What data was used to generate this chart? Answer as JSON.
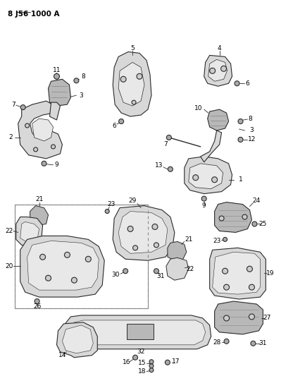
{
  "title": "8 J56 1000 A",
  "bg": "#ffffff",
  "lc": "#2a2a2a",
  "tc": "#000000",
  "fig_w": 4.16,
  "fig_h": 5.33,
  "dpi": 100
}
